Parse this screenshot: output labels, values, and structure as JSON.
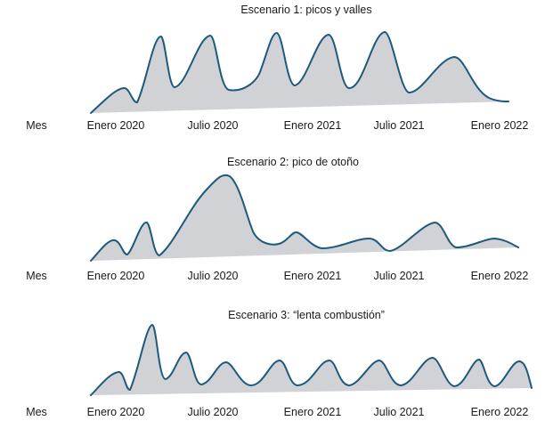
{
  "scenarios": [
    {
      "title": "Escenario 1: picos y valles"
    },
    {
      "title": "Escenario 2: pico de otoño"
    },
    {
      "title": "Escenario 3: “lenta combustión”"
    }
  ],
  "axis": {
    "label": "Mes",
    "ticks": [
      "Enero 2020",
      "Julio 2020",
      "Enero 2021",
      "Julio 2021",
      "Enero 2022"
    ]
  },
  "colors": {
    "curve": "#1d5a7e",
    "fill": "#d0d2d5"
  }
}
